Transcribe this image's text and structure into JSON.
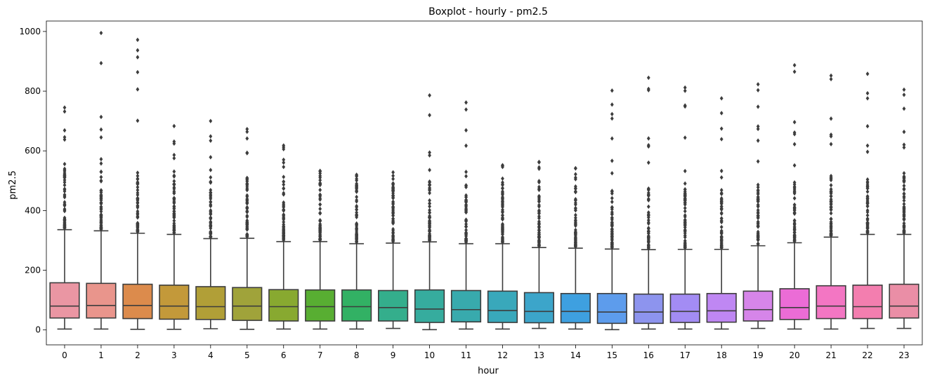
{
  "chart_data": {
    "type": "boxplot",
    "title": "Boxplot - hourly - pm2.5",
    "xlabel": "hour",
    "ylabel": "pm2.5",
    "ylim": [
      -50,
      1035
    ],
    "yticks": [
      0,
      200,
      400,
      600,
      800,
      1000
    ],
    "grid": false,
    "categories": [
      "0",
      "1",
      "2",
      "3",
      "4",
      "5",
      "6",
      "7",
      "8",
      "9",
      "10",
      "11",
      "12",
      "13",
      "14",
      "15",
      "16",
      "17",
      "18",
      "19",
      "20",
      "21",
      "22",
      "23"
    ],
    "colors": [
      "#ea96a3",
      "#e9958c",
      "#dc8b4c",
      "#c3993a",
      "#b19f37",
      "#a0a33a",
      "#88a930",
      "#58ae32",
      "#32b164",
      "#34ae8c",
      "#36ac9e",
      "#38aaad",
      "#39a8bb",
      "#3ca5ca",
      "#3ea0e0",
      "#5d9cec",
      "#8d94ee",
      "#a38cf4",
      "#bf87f3",
      "#d685e9",
      "#eb6cd6",
      "#f376c3",
      "#f37eaf",
      "#ea8ea6"
    ],
    "boxes": [
      {
        "q1": 40,
        "median": 80,
        "q3": 158,
        "whisker_low": 3,
        "whisker_high": 336,
        "outlier_max": 745
      },
      {
        "q1": 40,
        "median": 82,
        "q3": 156,
        "whisker_low": 3,
        "whisker_high": 332,
        "outlier_max": 995
      },
      {
        "q1": 38,
        "median": 82,
        "q3": 153,
        "whisker_low": 2,
        "whisker_high": 324,
        "outlier_max": 972
      },
      {
        "q1": 36,
        "median": 80,
        "q3": 150,
        "whisker_low": 2,
        "whisker_high": 320,
        "outlier_max": 683
      },
      {
        "q1": 35,
        "median": 78,
        "q3": 145,
        "whisker_low": 4,
        "whisker_high": 306,
        "outlier_max": 700
      },
      {
        "q1": 32,
        "median": 80,
        "q3": 142,
        "whisker_low": 2,
        "whisker_high": 307,
        "outlier_max": 673
      },
      {
        "q1": 30,
        "median": 78,
        "q3": 135,
        "whisker_low": 3,
        "whisker_high": 296,
        "outlier_max": 618
      },
      {
        "q1": 30,
        "median": 78,
        "q3": 134,
        "whisker_low": 3,
        "whisker_high": 296,
        "outlier_max": 533
      },
      {
        "q1": 30,
        "median": 78,
        "q3": 134,
        "whisker_low": 3,
        "whisker_high": 289,
        "outlier_max": 520
      },
      {
        "q1": 30,
        "median": 75,
        "q3": 132,
        "whisker_low": 5,
        "whisker_high": 291,
        "outlier_max": 528
      },
      {
        "q1": 25,
        "median": 70,
        "q3": 134,
        "whisker_low": 1,
        "whisker_high": 295,
        "outlier_max": 786
      },
      {
        "q1": 27,
        "median": 68,
        "q3": 132,
        "whisker_low": 3,
        "whisker_high": 289,
        "outlier_max": 762
      },
      {
        "q1": 25,
        "median": 65,
        "q3": 130,
        "whisker_low": 3,
        "whisker_high": 289,
        "outlier_max": 552
      },
      {
        "q1": 24,
        "median": 62,
        "q3": 125,
        "whisker_low": 5,
        "whisker_high": 276,
        "outlier_max": 563
      },
      {
        "q1": 24,
        "median": 62,
        "q3": 122,
        "whisker_low": 3,
        "whisker_high": 274,
        "outlier_max": 542
      },
      {
        "q1": 22,
        "median": 60,
        "q3": 122,
        "whisker_low": 1,
        "whisker_high": 271,
        "outlier_max": 802
      },
      {
        "q1": 22,
        "median": 60,
        "q3": 120,
        "whisker_low": 3,
        "whisker_high": 269,
        "outlier_max": 845
      },
      {
        "q1": 25,
        "median": 62,
        "q3": 120,
        "whisker_low": 3,
        "whisker_high": 270,
        "outlier_max": 812
      },
      {
        "q1": 26,
        "median": 64,
        "q3": 122,
        "whisker_low": 3,
        "whisker_high": 270,
        "outlier_max": 776
      },
      {
        "q1": 30,
        "median": 68,
        "q3": 130,
        "whisker_low": 5,
        "whisker_high": 282,
        "outlier_max": 823
      },
      {
        "q1": 35,
        "median": 75,
        "q3": 138,
        "whisker_low": 3,
        "whisker_high": 292,
        "outlier_max": 887
      },
      {
        "q1": 38,
        "median": 80,
        "q3": 148,
        "whisker_low": 3,
        "whisker_high": 311,
        "outlier_max": 852
      },
      {
        "q1": 38,
        "median": 78,
        "q3": 150,
        "whisker_low": 5,
        "whisker_high": 320,
        "outlier_max": 858
      },
      {
        "q1": 40,
        "median": 80,
        "q3": 153,
        "whisker_low": 5,
        "whisker_high": 320,
        "outlier_max": 805
      }
    ]
  }
}
